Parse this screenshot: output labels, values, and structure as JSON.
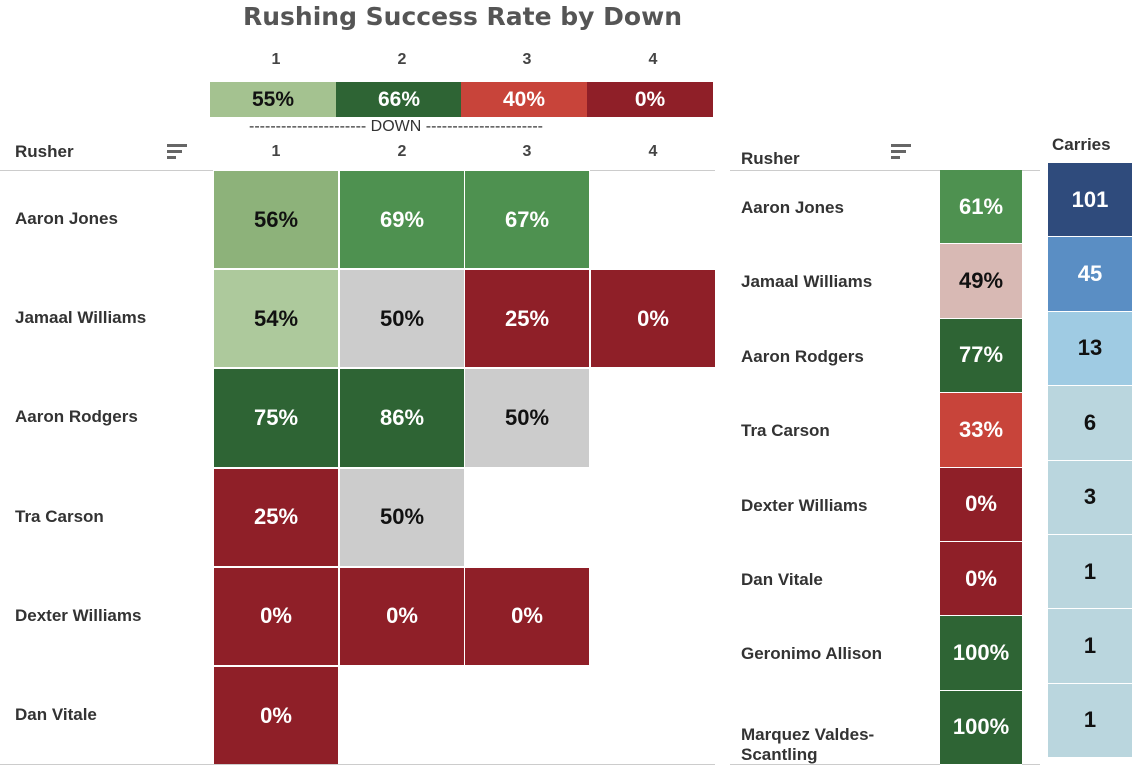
{
  "colors": {
    "light_green": "#a4c290",
    "mid_green": "#8db27a",
    "pale_green": "#adc99c",
    "green": "#4e9150",
    "dark_green": "#2e6434",
    "grey": "#cccccc",
    "red": "#c8443a",
    "dark_red": "#8f1f28",
    "pink": "#d8b9b4",
    "navy": "#2f4b7c",
    "steel_blue": "#5a8ec4",
    "sky_blue": "#9fcbe3",
    "pale_blue": "#bad6de"
  },
  "chart_data": [
    {
      "type": "heatmap",
      "title": "Rushing Success Rate by Down",
      "xlabel": "DOWN",
      "row_label": "Rusher",
      "columns": [
        "1",
        "2",
        "3",
        "4"
      ],
      "summary_row": [
        "55%",
        "66%",
        "40%",
        "0%"
      ],
      "rows": [
        {
          "name": "Aaron Jones",
          "values": [
            "56%",
            "69%",
            "67%",
            null
          ]
        },
        {
          "name": "Jamaal Williams",
          "values": [
            "54%",
            "50%",
            "25%",
            "0%"
          ]
        },
        {
          "name": "Aaron Rodgers",
          "values": [
            "75%",
            "86%",
            "50%",
            null
          ]
        },
        {
          "name": "Tra Carson",
          "values": [
            "25%",
            "50%",
            null,
            null
          ]
        },
        {
          "name": "Dexter Williams",
          "values": [
            "0%",
            "0%",
            "0%",
            null
          ]
        },
        {
          "name": "Dan Vitale",
          "values": [
            "0%",
            null,
            null,
            null
          ]
        }
      ]
    },
    {
      "type": "table",
      "row_label": "Rusher",
      "carries_label": "Carries",
      "rows": [
        {
          "name": "Aaron Jones",
          "rate": "61%",
          "carries": 101
        },
        {
          "name": "Jamaal Williams",
          "rate": "49%",
          "carries": 45
        },
        {
          "name": "Aaron Rodgers",
          "rate": "77%",
          "carries": 13
        },
        {
          "name": "Tra Carson",
          "rate": "33%",
          "carries": 6
        },
        {
          "name": "Dexter Williams",
          "rate": "0%",
          "carries": 3
        },
        {
          "name": "Dan Vitale",
          "rate": "0%",
          "carries": 1
        },
        {
          "name": "Geronimo Allison",
          "rate": "100%",
          "carries": 1
        },
        {
          "name": "Marquez Valdes-Scantling",
          "rate": "100%",
          "carries": 1
        }
      ]
    }
  ]
}
